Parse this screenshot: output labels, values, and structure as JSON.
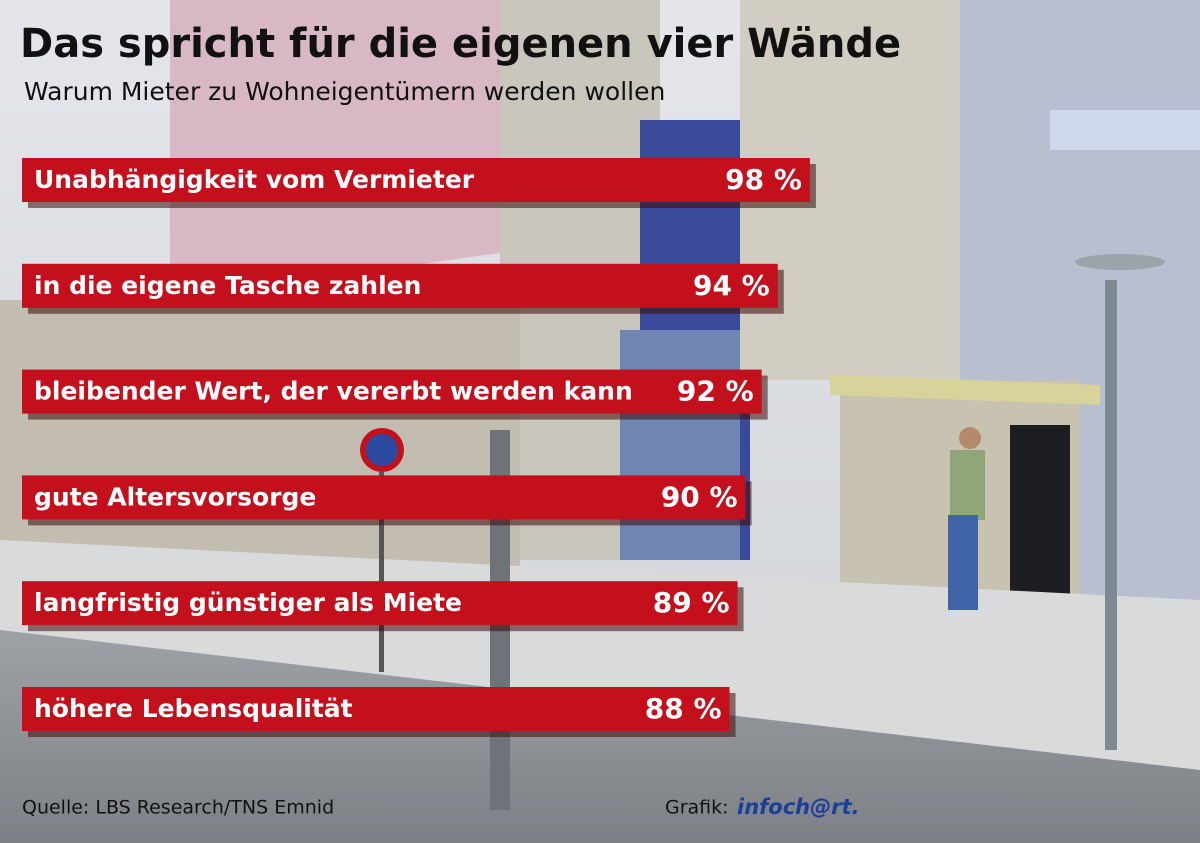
{
  "chart_data": {
    "type": "bar",
    "title": "Das spricht für die eigenen vier Wände",
    "subtitle": "Warum Mieter zu Wohneigentümern werden wollen",
    "categories": [
      "Unabhängigkeit vom Vermieter",
      "in die eigene Tasche zahlen",
      "bleibender Wert, der vererbt werden kann",
      "gute Altersvorsorge",
      "langfristig günstiger als Miete",
      "höhere Lebensqualität"
    ],
    "values": [
      98,
      94,
      92,
      90,
      89,
      88
    ],
    "value_labels": [
      "98 %",
      "94 %",
      "92 %",
      "90 %",
      "89 %",
      "88 %"
    ],
    "color": "#c4101c",
    "source": "Quelle: LBS Research/TNS Emnid",
    "credit_label": "Grafik:",
    "credit_logo": "infoch@rt."
  }
}
